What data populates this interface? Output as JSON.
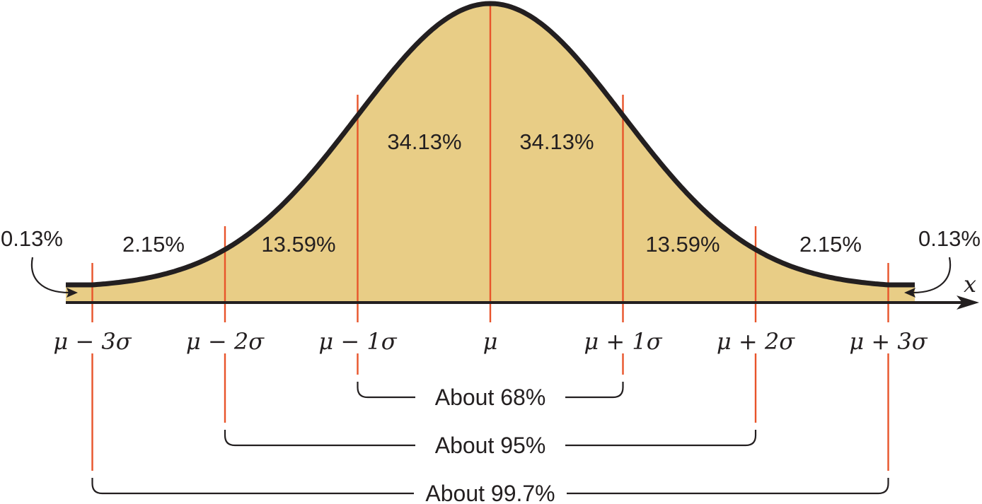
{
  "colors": {
    "area_fill": "#e8cd86",
    "curve": "#231f20",
    "sd_lines": "#e8542a",
    "text": "#231f20"
  },
  "axis": {
    "variable": "x",
    "ticks": [
      "μ − 3σ",
      "μ − 2σ",
      "μ − 1σ",
      "μ",
      "μ + 1σ",
      "μ + 2σ",
      "μ + 3σ"
    ]
  },
  "regions": [
    {
      "label": "0.13%",
      "side": "left-tail"
    },
    {
      "label": "2.15%"
    },
    {
      "label": "13.59%"
    },
    {
      "label": "34.13%"
    },
    {
      "label": "34.13%"
    },
    {
      "label": "13.59%"
    },
    {
      "label": "2.15%"
    },
    {
      "label": "0.13%",
      "side": "right-tail"
    }
  ],
  "brackets": [
    {
      "label": "About 68%",
      "from_sd": -1,
      "to_sd": 1
    },
    {
      "label": "About 95%",
      "from_sd": -2,
      "to_sd": 2
    },
    {
      "label": "About 99.7%",
      "from_sd": -3,
      "to_sd": 3
    }
  ],
  "chart_data": {
    "type": "area",
    "x_range_sd": [
      -3.2,
      3.2
    ],
    "sd_markers": [
      -3,
      -2,
      -1,
      0,
      1,
      2,
      3
    ],
    "region_percentages": [
      0.13,
      2.15,
      13.59,
      34.13,
      34.13,
      13.59,
      2.15,
      0.13
    ],
    "bracket_percentages": {
      "within_1sd": 68,
      "within_2sd": 95,
      "within_3sd": 99.7
    }
  }
}
